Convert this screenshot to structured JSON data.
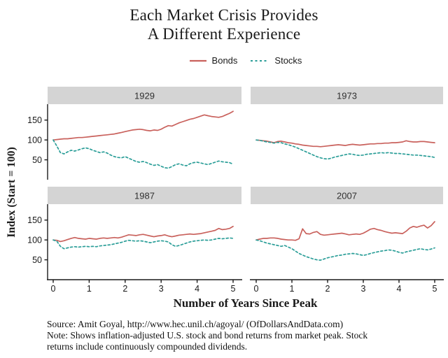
{
  "title": {
    "line1": "Each Market Crisis Provides",
    "line2": "A Different Experience"
  },
  "legend": {
    "items": [
      {
        "label": "Bonds",
        "style": "solid"
      },
      {
        "label": "Stocks",
        "style": "dashed"
      }
    ]
  },
  "colors": {
    "bonds": "#c9615c",
    "stocks": "#2b9e98",
    "strip_bg": "#d4d4d4",
    "strip_text": "#303030",
    "axis": "#1a1a1a",
    "tick_text": "#1a1a1a"
  },
  "y_axis": {
    "label": "Index (Start = 100)",
    "ticks": [
      50,
      100,
      150
    ]
  },
  "x_axis": {
    "label": "Number of Years Since Peak",
    "ticks": [
      0,
      1,
      2,
      3,
      4,
      5
    ]
  },
  "footer": {
    "lines": [
      "Source: Amit Goyal, http://www.hec.unil.ch/agoyal/ (OfDollarsAndData.com)",
      "Note: Shows inflation-adjusted U.S. stock and bond returns from market peak. Stock",
      "returns include continuously compounded dividends."
    ]
  },
  "chart_data": {
    "type": "line",
    "title": "Each Market Crisis Provides A Different Experience",
    "xlabel": "Number of Years Since Peak",
    "ylabel": "Index (Start = 100)",
    "x_start": 0,
    "x_step": 0.1,
    "x_range": [
      0,
      5
    ],
    "y_range": [
      0,
      190
    ],
    "y_ticks": [
      50,
      100,
      150
    ],
    "x_ticks": [
      0,
      1,
      2,
      3,
      4,
      5
    ],
    "grid": false,
    "legend_position": "top",
    "facets": [
      {
        "label": "1929",
        "series": [
          {
            "name": "Bonds",
            "values": [
              100,
              101,
              102,
              103,
              103,
              104,
              105,
              106,
              106,
              107,
              108,
              109,
              110,
              111,
              112,
              113,
              114,
              115,
              117,
              119,
              121,
              123,
              125,
              126,
              127,
              126,
              124,
              123,
              125,
              124,
              127,
              132,
              136,
              135,
              139,
              143,
              146,
              149,
              152,
              154,
              157,
              160,
              163,
              161,
              159,
              158,
              157,
              159,
              163,
              167,
              172
            ]
          },
          {
            "name": "Stocks",
            "values": [
              100,
              85,
              68,
              65,
              70,
              74,
              72,
              75,
              78,
              80,
              78,
              74,
              71,
              68,
              70,
              67,
              62,
              58,
              56,
              55,
              58,
              54,
              50,
              46,
              44,
              46,
              43,
              39,
              36,
              38,
              34,
              30,
              29,
              33,
              38,
              40,
              37,
              35,
              40,
              43,
              44,
              42,
              40,
              38,
              41,
              44,
              47,
              45,
              44,
              43,
              39
            ]
          }
        ]
      },
      {
        "label": "1973",
        "series": [
          {
            "name": "Bonds",
            "values": [
              100,
              99,
              98,
              97,
              95,
              93,
              96,
              97,
              95,
              93,
              92,
              90,
              89,
              87,
              86,
              85,
              84,
              84,
              83,
              84,
              85,
              86,
              87,
              88,
              87,
              86,
              88,
              89,
              88,
              87,
              88,
              89,
              90,
              90,
              91,
              91,
              92,
              92,
              93,
              93,
              94,
              95,
              98,
              96,
              95,
              95,
              96,
              96,
              95,
              94,
              93
            ]
          },
          {
            "name": "Stocks",
            "values": [
              100,
              99,
              97,
              95,
              94,
              92,
              94,
              93,
              90,
              88,
              85,
              82,
              78,
              74,
              70,
              66,
              62,
              58,
              55,
              53,
              52,
              54,
              57,
              59,
              61,
              63,
              65,
              64,
              62,
              61,
              62,
              64,
              65,
              66,
              67,
              68,
              67,
              68,
              67,
              66,
              66,
              65,
              64,
              63,
              62,
              62,
              61,
              60,
              59,
              58,
              56
            ]
          }
        ]
      },
      {
        "label": "1987",
        "series": [
          {
            "name": "Bonds",
            "values": [
              100,
              99,
              96,
              98,
              101,
              104,
              106,
              104,
              103,
              102,
              104,
              103,
              102,
              104,
              105,
              104,
              105,
              106,
              105,
              107,
              110,
              113,
              112,
              111,
              113,
              114,
              112,
              110,
              108,
              110,
              111,
              113,
              110,
              108,
              110,
              112,
              113,
              114,
              115,
              114,
              115,
              116,
              118,
              120,
              122,
              124,
              129,
              126,
              127,
              129,
              134
            ]
          },
          {
            "name": "Stocks",
            "values": [
              100,
              97,
              84,
              78,
              80,
              82,
              83,
              82,
              83,
              84,
              83,
              84,
              83,
              85,
              86,
              87,
              88,
              90,
              92,
              94,
              97,
              99,
              98,
              97,
              98,
              97,
              95,
              93,
              95,
              97,
              98,
              97,
              95,
              88,
              84,
              86,
              89,
              92,
              95,
              97,
              98,
              99,
              100,
              99,
              100,
              102,
              104,
              103,
              104,
              105,
              104
            ]
          }
        ]
      },
      {
        "label": "2007",
        "series": [
          {
            "name": "Bonds",
            "values": [
              100,
              102,
              104,
              104,
              105,
              105,
              104,
              102,
              101,
              100,
              100,
              99,
              103,
              128,
              116,
              115,
              119,
              121,
              114,
              112,
              113,
              114,
              115,
              116,
              117,
              115,
              113,
              114,
              115,
              114,
              117,
              122,
              127,
              129,
              126,
              124,
              121,
              119,
              117,
              118,
              117,
              116,
              122,
              130,
              134,
              132,
              135,
              137,
              130,
              136,
              146
            ]
          },
          {
            "name": "Stocks",
            "values": [
              100,
              98,
              95,
              92,
              90,
              88,
              86,
              84,
              86,
              82,
              78,
              72,
              66,
              62,
              58,
              55,
              52,
              50,
              49,
              52,
              55,
              57,
              59,
              61,
              62,
              64,
              65,
              66,
              65,
              63,
              61,
              63,
              66,
              68,
              70,
              72,
              73,
              75,
              74,
              72,
              69,
              67,
              70,
              72,
              74,
              76,
              78,
              76,
              75,
              77,
              80
            ]
          }
        ]
      }
    ]
  }
}
